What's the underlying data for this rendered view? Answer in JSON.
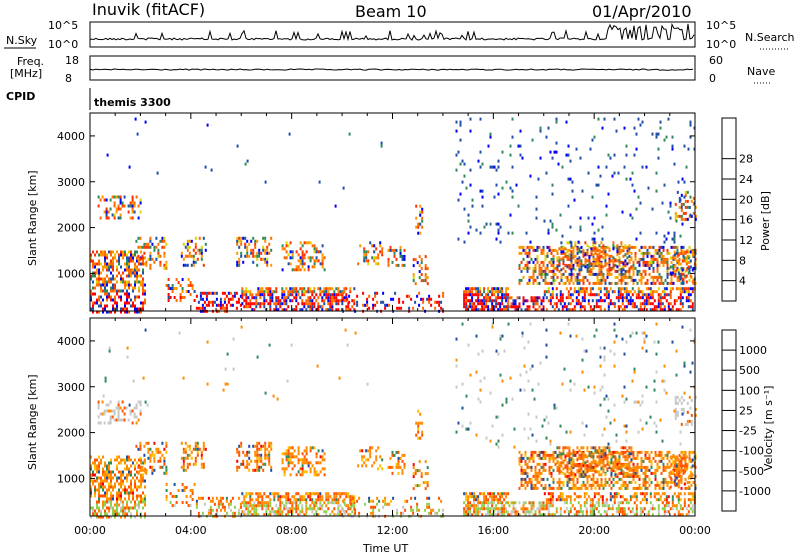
{
  "header": {
    "station": "Inuvik (fitACF)",
    "beam": "Beam 10",
    "date": "01/Apr/2010"
  },
  "panels": {
    "nsky": {
      "label": "N.Sky",
      "left_ticks": [
        "10^5",
        "10^0"
      ],
      "right_label": "N.Search",
      "right_ticks": [
        "10^5",
        "10^0"
      ]
    },
    "freq": {
      "label_lines": [
        "Freq.",
        "[MHz]"
      ],
      "left_ticks": [
        "18",
        "8"
      ],
      "right_label": "Nave",
      "right_ticks": [
        "60",
        "0"
      ]
    },
    "cpid": {
      "label": "CPID",
      "value": "themis 3300"
    }
  },
  "colors": {
    "power": [
      "#0000ff",
      "#1f4fa8",
      "#2e8b57",
      "#6aaa3a",
      "#d8d800",
      "#ff9900",
      "#ff6a00",
      "#ff3300",
      "#ff0000"
    ],
    "velocity": [
      "#ff0000",
      "#ff5500",
      "#ff8c00",
      "#ffc000",
      "#c8c8c8",
      "#8fd14f",
      "#2e8b57",
      "#1e4fa0",
      "#0000cc"
    ]
  },
  "chart_data": [
    {
      "type": "heatmap",
      "name_hint": "power",
      "ylabel": "Slant Range [km]",
      "yticks": [
        "1000",
        "2000",
        "3000",
        "4000"
      ],
      "ylim": [
        180,
        4500
      ],
      "xticks": [
        "00:00",
        "04:00",
        "08:00",
        "12:00",
        "16:00",
        "20:00",
        "00:00"
      ],
      "xlim_hours": [
        0,
        24
      ],
      "colorbar": {
        "label": "Power [dB]",
        "ticks": [
          "4",
          "8",
          "12",
          "16",
          "20",
          "24",
          "28"
        ]
      }
    },
    {
      "type": "heatmap",
      "name_hint": "velocity",
      "ylabel": "Slant Range [km]",
      "yticks": [
        "1000",
        "2000",
        "3000",
        "4000"
      ],
      "ylim": [
        180,
        4500
      ],
      "xticks": [
        "00:00",
        "04:00",
        "08:00",
        "12:00",
        "16:00",
        "20:00",
        "00:00"
      ],
      "xlabel": "Time UT",
      "xlim_hours": [
        0,
        24
      ],
      "colorbar": {
        "label": "Velocity [m s⁻¹]",
        "ticks": [
          "1000",
          "500",
          "100",
          "25",
          "-25",
          "-100",
          "-500",
          "-1000"
        ]
      }
    }
  ]
}
